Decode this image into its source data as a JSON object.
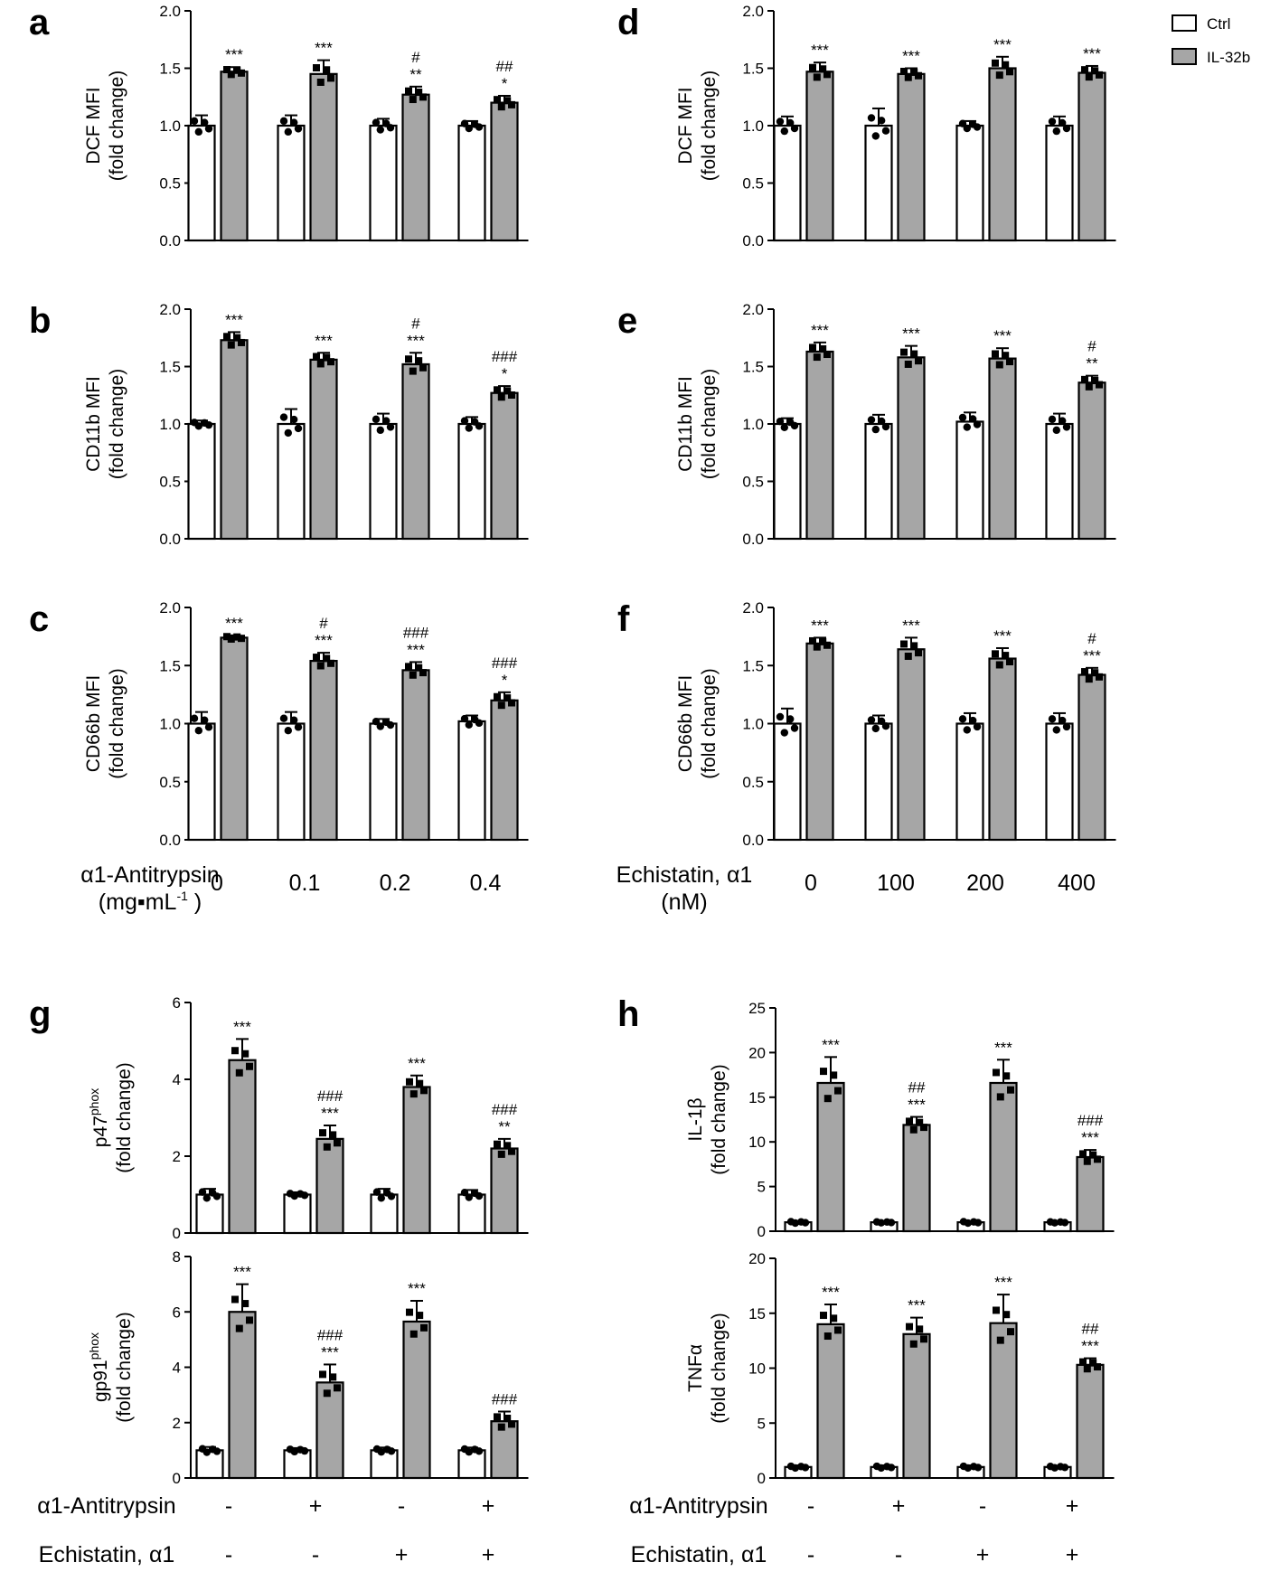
{
  "colors": {
    "ctrl": "#ffffff",
    "il32b": "#a6a6a6",
    "axis": "#000000",
    "dot": "#000000"
  },
  "legend": {
    "items": [
      "Ctrl",
      "IL-32b"
    ]
  },
  "xaxis_top": {
    "left": {
      "label_line1": "α1-Antitrypsin",
      "label_line2": "(mg▪mL",
      "label_sup": "-1",
      "label_close": " )",
      "ticks": [
        "0",
        "0.1",
        "0.2",
        "0.4"
      ]
    },
    "right": {
      "label_line1": "Echistatin, α1",
      "label_line2": "(nM)",
      "ticks": [
        "0",
        "100",
        "200",
        "400"
      ]
    }
  },
  "xaxis_bottom": {
    "row1_label": "α1-Antitrypsin",
    "row2_label": "Echistatin, α1",
    "row1": [
      "-",
      "+",
      "-",
      "+"
    ],
    "row2": [
      "-",
      "-",
      "+",
      "+"
    ]
  },
  "chart_data": [
    {
      "panel": "a",
      "type": "bar",
      "title": "",
      "ylabel": "DCF MFI",
      "ylabel2": "(fold change)",
      "ylim": [
        0,
        2.0
      ],
      "yticks": [
        "0.0",
        "0.5",
        "1.0",
        "1.5",
        "2.0"
      ],
      "categories": [
        "0",
        "0.1",
        "0.2",
        "0.4"
      ],
      "series": [
        {
          "name": "Ctrl",
          "values": [
            1.0,
            1.0,
            1.0,
            1.0
          ],
          "err": [
            0.09,
            0.09,
            0.06,
            0.04
          ]
        },
        {
          "name": "IL-32b",
          "values": [
            1.47,
            1.45,
            1.27,
            1.2
          ],
          "err": [
            0.04,
            0.12,
            0.07,
            0.06
          ]
        }
      ],
      "annotations": [
        [
          "***"
        ],
        [
          "***"
        ],
        [
          "**",
          "#"
        ],
        [
          "*",
          "##"
        ]
      ]
    },
    {
      "panel": "b",
      "type": "bar",
      "title": "",
      "ylabel": "CD11b MFI",
      "ylabel2": "(fold change)",
      "ylim": [
        0,
        2.0
      ],
      "yticks": [
        "0.0",
        "0.5",
        "1.0",
        "1.5",
        "2.0"
      ],
      "categories": [
        "0",
        "0.1",
        "0.2",
        "0.4"
      ],
      "series": [
        {
          "name": "Ctrl",
          "values": [
            1.0,
            1.0,
            1.0,
            1.0
          ],
          "err": [
            0.03,
            0.13,
            0.09,
            0.06
          ]
        },
        {
          "name": "IL-32b",
          "values": [
            1.73,
            1.56,
            1.52,
            1.27
          ],
          "err": [
            0.07,
            0.06,
            0.1,
            0.06
          ]
        }
      ],
      "annotations": [
        [
          "***"
        ],
        [
          "***"
        ],
        [
          "***",
          "#"
        ],
        [
          "*",
          "###"
        ]
      ]
    },
    {
      "panel": "c",
      "type": "bar",
      "title": "",
      "ylabel": "CD66b MFI",
      "ylabel2": "(fold change)",
      "ylim": [
        0,
        2.0
      ],
      "yticks": [
        "0.0",
        "0.5",
        "1.0",
        "1.5",
        "2.0"
      ],
      "categories": [
        "0",
        "0.1",
        "0.2",
        "0.4"
      ],
      "series": [
        {
          "name": "Ctrl",
          "values": [
            1.0,
            1.0,
            1.0,
            1.02
          ],
          "err": [
            0.1,
            0.1,
            0.04,
            0.05
          ]
        },
        {
          "name": "IL-32b",
          "values": [
            1.74,
            1.54,
            1.46,
            1.2
          ],
          "err": [
            0.02,
            0.07,
            0.07,
            0.07
          ]
        }
      ],
      "annotations": [
        [
          "***"
        ],
        [
          "***",
          "#"
        ],
        [
          "***",
          "###"
        ],
        [
          "*",
          "###"
        ]
      ]
    },
    {
      "panel": "d",
      "type": "bar",
      "title": "",
      "ylabel": "DCF MFI",
      "ylabel2": "(fold change)",
      "ylim": [
        0,
        2.0
      ],
      "yticks": [
        "0.0",
        "0.5",
        "1.0",
        "1.5",
        "2.0"
      ],
      "categories": [
        "0",
        "100",
        "200",
        "400"
      ],
      "series": [
        {
          "name": "Ctrl",
          "values": [
            1.0,
            1.0,
            1.0,
            1.0
          ],
          "err": [
            0.08,
            0.15,
            0.04,
            0.08
          ]
        },
        {
          "name": "IL-32b",
          "values": [
            1.47,
            1.45,
            1.5,
            1.46
          ],
          "err": [
            0.08,
            0.05,
            0.1,
            0.06
          ]
        }
      ],
      "annotations": [
        [
          "***"
        ],
        [
          "***"
        ],
        [
          "***"
        ],
        [
          "***"
        ]
      ]
    },
    {
      "panel": "e",
      "type": "bar",
      "title": "",
      "ylabel": "CD11b MFI",
      "ylabel2": "(fold change)",
      "ylim": [
        0,
        2.0
      ],
      "yticks": [
        "0.0",
        "0.5",
        "1.0",
        "1.5",
        "2.0"
      ],
      "categories": [
        "0",
        "100",
        "200",
        "400"
      ],
      "series": [
        {
          "name": "Ctrl",
          "values": [
            1.0,
            1.0,
            1.02,
            1.0
          ],
          "err": [
            0.05,
            0.08,
            0.08,
            0.09
          ]
        },
        {
          "name": "IL-32b",
          "values": [
            1.63,
            1.58,
            1.57,
            1.36
          ],
          "err": [
            0.08,
            0.1,
            0.09,
            0.06
          ]
        }
      ],
      "annotations": [
        [
          "***"
        ],
        [
          "***"
        ],
        [
          "***"
        ],
        [
          "**",
          "#"
        ]
      ]
    },
    {
      "panel": "f",
      "type": "bar",
      "title": "",
      "ylabel": "CD66b MFI",
      "ylabel2": "(fold change)",
      "ylim": [
        0,
        2.0
      ],
      "yticks": [
        "0.0",
        "0.5",
        "1.0",
        "1.5",
        "2.0"
      ],
      "categories": [
        "0",
        "100",
        "200",
        "400"
      ],
      "series": [
        {
          "name": "Ctrl",
          "values": [
            1.0,
            1.0,
            1.0,
            1.0
          ],
          "err": [
            0.13,
            0.07,
            0.09,
            0.09
          ]
        },
        {
          "name": "IL-32b",
          "values": [
            1.69,
            1.64,
            1.56,
            1.42
          ],
          "err": [
            0.05,
            0.1,
            0.09,
            0.06
          ]
        }
      ],
      "annotations": [
        [
          "***"
        ],
        [
          "***"
        ],
        [
          "***"
        ],
        [
          "***",
          "#"
        ]
      ]
    },
    {
      "panel": "g",
      "type": "bar",
      "title": "",
      "ylabel": "p47",
      "ylabel_sup": "phox",
      "ylabel2": "(fold change)",
      "ylim": [
        0,
        6
      ],
      "yticks": [
        "0",
        "2",
        "4",
        "6"
      ],
      "categories": [
        "-/-",
        "+/-",
        "-/+",
        "+/+"
      ],
      "series": [
        {
          "name": "Ctrl",
          "values": [
            1.0,
            1.0,
            1.0,
            1.0
          ],
          "err": [
            0.15,
            0.06,
            0.15,
            0.12
          ]
        },
        {
          "name": "IL-32b",
          "values": [
            4.5,
            2.45,
            3.8,
            2.2
          ],
          "err": [
            0.55,
            0.35,
            0.3,
            0.25
          ]
        }
      ],
      "annotations": [
        [
          "***"
        ],
        [
          "***",
          "###"
        ],
        [
          "***"
        ],
        [
          "**",
          "###"
        ]
      ]
    },
    {
      "panel": "g2",
      "type": "bar",
      "title": "",
      "ylabel": "gp91",
      "ylabel_sup": "phox",
      "ylabel2": "(fold change)",
      "ylim": [
        0,
        8
      ],
      "yticks": [
        "0",
        "2",
        "4",
        "6",
        "8"
      ],
      "categories": [
        "-/-",
        "+/-",
        "-/+",
        "+/+"
      ],
      "series": [
        {
          "name": "Ctrl",
          "values": [
            1.0,
            1.0,
            1.0,
            1.0
          ],
          "err": [
            0.12,
            0.08,
            0.1,
            0.1
          ]
        },
        {
          "name": "IL-32b",
          "values": [
            6.0,
            3.45,
            5.65,
            2.05
          ],
          "err": [
            1.0,
            0.65,
            0.75,
            0.35
          ]
        }
      ],
      "annotations": [
        [
          "***"
        ],
        [
          "***",
          "###"
        ],
        [
          "***"
        ],
        [
          "###"
        ]
      ]
    },
    {
      "panel": "h",
      "type": "bar",
      "title": "",
      "ylabel": "IL-1β",
      "ylabel2": "(fold change)",
      "ylim": [
        0,
        25
      ],
      "yticks": [
        "0",
        "5",
        "10",
        "15",
        "20",
        "25"
      ],
      "categories": [
        "-/-",
        "+/-",
        "-/+",
        "+/+"
      ],
      "series": [
        {
          "name": "Ctrl",
          "values": [
            1.0,
            1.0,
            1.0,
            1.0
          ],
          "err": [
            0.15,
            0.1,
            0.15,
            0.1
          ]
        },
        {
          "name": "IL-32b",
          "values": [
            16.6,
            11.9,
            16.6,
            8.3
          ],
          "err": [
            2.9,
            0.9,
            2.6,
            0.8
          ]
        }
      ],
      "annotations": [
        [
          "***"
        ],
        [
          "***",
          "##"
        ],
        [
          "***"
        ],
        [
          "***",
          "###"
        ]
      ]
    },
    {
      "panel": "h2",
      "type": "bar",
      "title": "",
      "ylabel": "TNFα",
      "ylabel2": "(fold change)",
      "ylim": [
        0,
        20
      ],
      "yticks": [
        "0",
        "5",
        "10",
        "15",
        "20"
      ],
      "categories": [
        "-/-",
        "+/-",
        "-/+",
        "+/+"
      ],
      "series": [
        {
          "name": "Ctrl",
          "values": [
            1.0,
            1.0,
            1.0,
            1.0
          ],
          "err": [
            0.15,
            0.15,
            0.15,
            0.12
          ]
        },
        {
          "name": "IL-32b",
          "values": [
            14.0,
            13.1,
            14.1,
            10.3
          ],
          "err": [
            1.8,
            1.5,
            2.6,
            0.6
          ]
        }
      ],
      "annotations": [
        [
          "***"
        ],
        [
          "***"
        ],
        [
          "***"
        ],
        [
          "***",
          "##"
        ]
      ]
    }
  ]
}
